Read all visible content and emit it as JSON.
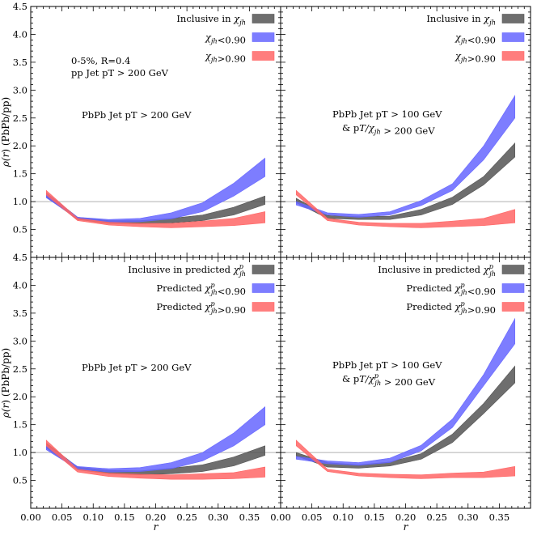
{
  "figure": {
    "ylabel": "ρ(r) (PbPb/pp)",
    "xlabel": "r",
    "xlim": [
      0.0,
      0.4
    ],
    "ylim": [
      0.0,
      4.5
    ],
    "xticks": [
      "0.00",
      "0.05",
      "0.10",
      "0.15",
      "0.20",
      "0.25",
      "0.30",
      "0.35"
    ],
    "yticks": [
      "0.5",
      "1.0",
      "1.5",
      "2.0",
      "2.5",
      "3.0",
      "3.5",
      "4.0",
      "4.5"
    ],
    "reference_line": 1.0,
    "colors": {
      "inclusive": "#555555",
      "low": "#6666ff",
      "high": "#ff6666"
    }
  },
  "chart_data": [
    {
      "type": "area",
      "panel": "top-left",
      "legend_placement": "top-right",
      "annotations": [
        "0-5%, R=0.4",
        "pp Jet p_T > 200 GeV",
        "PbPb Jet p_T > 200 GeV"
      ],
      "legend": [
        {
          "prefix": "Inclusive in ",
          "sym": "χ",
          "sub": "jh",
          "sup": "",
          "suffix": ""
        },
        {
          "prefix": "",
          "sym": "χ",
          "sub": "jh",
          "sup": "",
          "suffix": "<0.90"
        },
        {
          "prefix": "",
          "sym": "χ",
          "sub": "jh",
          "sup": "",
          "suffix": ">0.90"
        }
      ],
      "x": [
        0.025,
        0.075,
        0.125,
        0.175,
        0.225,
        0.275,
        0.325,
        0.375
      ],
      "series": [
        {
          "name": "Inclusive in χjh",
          "color_key": "inclusive",
          "lower": [
            1.08,
            0.68,
            0.61,
            0.6,
            0.62,
            0.66,
            0.76,
            0.95
          ],
          "upper": [
            1.16,
            0.72,
            0.66,
            0.66,
            0.7,
            0.76,
            0.9,
            1.1
          ]
        },
        {
          "name": "χjh<0.90",
          "color_key": "low",
          "lower": [
            1.07,
            0.69,
            0.63,
            0.64,
            0.69,
            0.82,
            1.1,
            1.45
          ],
          "upper": [
            1.15,
            0.72,
            0.68,
            0.7,
            0.8,
            0.98,
            1.33,
            1.78
          ]
        },
        {
          "name": "χjh>0.90",
          "color_key": "high",
          "lower": [
            1.12,
            0.66,
            0.58,
            0.55,
            0.53,
            0.55,
            0.57,
            0.62
          ],
          "upper": [
            1.2,
            0.7,
            0.63,
            0.61,
            0.61,
            0.65,
            0.7,
            0.82
          ]
        }
      ]
    },
    {
      "type": "area",
      "panel": "top-right",
      "legend_placement": "top-right",
      "annotations": [
        "PbPb Jet p_T > 100 GeV",
        "& p_T/χ_jh > 200 GeV"
      ],
      "legend": [
        {
          "prefix": "Inclusive in ",
          "sym": "χ",
          "sub": "jh",
          "sup": "",
          "suffix": ""
        },
        {
          "prefix": "",
          "sym": "χ",
          "sub": "jh",
          "sup": "",
          "suffix": "<0.90"
        },
        {
          "prefix": "",
          "sym": "χ",
          "sub": "jh",
          "sup": "",
          "suffix": ">0.90"
        }
      ],
      "x": [
        0.025,
        0.075,
        0.125,
        0.175,
        0.225,
        0.275,
        0.325,
        0.375
      ],
      "series": [
        {
          "name": "Inclusive in χjh",
          "color_key": "inclusive",
          "lower": [
            0.98,
            0.7,
            0.68,
            0.68,
            0.76,
            0.95,
            1.3,
            1.8
          ],
          "upper": [
            1.06,
            0.75,
            0.73,
            0.74,
            0.86,
            1.08,
            1.45,
            2.05
          ]
        },
        {
          "name": "χjh<0.90",
          "color_key": "low",
          "lower": [
            0.94,
            0.76,
            0.72,
            0.76,
            0.93,
            1.2,
            1.75,
            2.5
          ],
          "upper": [
            1.0,
            0.8,
            0.77,
            0.82,
            1.02,
            1.32,
            2.0,
            2.9
          ]
        },
        {
          "name": "χjh>0.90",
          "color_key": "high",
          "lower": [
            1.12,
            0.66,
            0.58,
            0.55,
            0.53,
            0.55,
            0.57,
            0.62
          ],
          "upper": [
            1.2,
            0.7,
            0.63,
            0.61,
            0.61,
            0.65,
            0.7,
            0.86
          ]
        }
      ]
    },
    {
      "type": "area",
      "panel": "bottom-left",
      "legend_placement": "top-right",
      "annotations": [
        "PbPb Jet p_T > 200 GeV"
      ],
      "legend": [
        {
          "prefix": "Inclusive in predicted ",
          "sym": "χ",
          "sub": "jh",
          "sup": "p",
          "suffix": ""
        },
        {
          "prefix": "Predicted ",
          "sym": "χ",
          "sub": "jh",
          "sup": "p",
          "suffix": "<0.90"
        },
        {
          "prefix": "Predicted ",
          "sym": "χ",
          "sub": "jh",
          "sup": "p",
          "suffix": ">0.90"
        }
      ],
      "x": [
        0.025,
        0.075,
        0.125,
        0.175,
        0.225,
        0.275,
        0.325,
        0.375
      ],
      "series": [
        {
          "name": "Inclusive in predicted χjh",
          "color_key": "inclusive",
          "lower": [
            1.08,
            0.69,
            0.62,
            0.6,
            0.62,
            0.66,
            0.76,
            0.95
          ],
          "upper": [
            1.17,
            0.74,
            0.68,
            0.67,
            0.72,
            0.78,
            0.92,
            1.12
          ]
        },
        {
          "name": "Predicted χjh<0.90",
          "color_key": "low",
          "lower": [
            1.05,
            0.7,
            0.65,
            0.66,
            0.71,
            0.85,
            1.12,
            1.5
          ],
          "upper": [
            1.13,
            0.75,
            0.71,
            0.73,
            0.82,
            1.0,
            1.35,
            1.82
          ]
        },
        {
          "name": "Predicted χjh>0.90",
          "color_key": "high",
          "lower": [
            1.12,
            0.65,
            0.57,
            0.54,
            0.52,
            0.52,
            0.53,
            0.56
          ],
          "upper": [
            1.22,
            0.7,
            0.63,
            0.61,
            0.6,
            0.62,
            0.64,
            0.74
          ]
        }
      ]
    },
    {
      "type": "area",
      "panel": "bottom-right",
      "legend_placement": "top-right",
      "annotations": [
        "PbPb Jet p_T > 100 GeV",
        "& p_T/χ^p_jh > 200 GeV"
      ],
      "legend": [
        {
          "prefix": "Inclusive in predicted ",
          "sym": "χ",
          "sub": "jh",
          "sup": "p",
          "suffix": ""
        },
        {
          "prefix": "Predicted ",
          "sym": "χ",
          "sub": "jh",
          "sup": "p",
          "suffix": "<0.90"
        },
        {
          "prefix": "Predicted ",
          "sym": "χ",
          "sub": "jh",
          "sup": "p",
          "suffix": ">0.90"
        }
      ],
      "x": [
        0.025,
        0.075,
        0.125,
        0.175,
        0.225,
        0.275,
        0.325,
        0.375
      ],
      "series": [
        {
          "name": "Inclusive in predicted χjh",
          "color_key": "inclusive",
          "lower": [
            0.94,
            0.74,
            0.72,
            0.76,
            0.88,
            1.18,
            1.7,
            2.25
          ],
          "upper": [
            1.0,
            0.82,
            0.78,
            0.83,
            0.98,
            1.33,
            1.88,
            2.55
          ]
        },
        {
          "name": "Predicted χjh<0.90",
          "color_key": "low",
          "lower": [
            0.88,
            0.8,
            0.77,
            0.82,
            1.03,
            1.45,
            2.2,
            2.95
          ],
          "upper": [
            0.93,
            0.85,
            0.82,
            0.9,
            1.13,
            1.6,
            2.4,
            3.4
          ]
        },
        {
          "name": "Predicted χjh>0.90",
          "color_key": "high",
          "lower": [
            1.12,
            0.66,
            0.58,
            0.55,
            0.53,
            0.55,
            0.55,
            0.58
          ],
          "upper": [
            1.22,
            0.7,
            0.63,
            0.61,
            0.6,
            0.63,
            0.65,
            0.75
          ]
        }
      ]
    }
  ]
}
